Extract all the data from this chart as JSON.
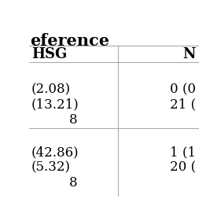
{
  "title": "eference",
  "col_headers": [
    "HSG",
    "N"
  ],
  "bg_color": "#ffffff",
  "line_color": "#aaaaaa",
  "text_color": "#000000",
  "header_fontsize": 13,
  "cell_fontsize": 12,
  "title_fontsize": 15
}
